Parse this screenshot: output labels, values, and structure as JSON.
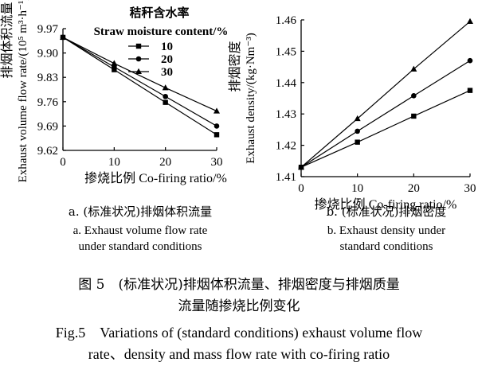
{
  "legend": {
    "title_zh": "秸秆含水率",
    "title_en": "Straw moisture content/%",
    "entries": [
      "10",
      "20",
      "30"
    ]
  },
  "panels": [
    {
      "subcaption_zh": "a. (标准状况)排烟体积流量",
      "subcaption_en_1": "a. Exhaust volume flow rate",
      "subcaption_en_2": "under standard conditions"
    },
    {
      "subcaption_zh": "b. (标准状况)排烟密度",
      "subcaption_en_1": "b. Exhaust density under",
      "subcaption_en_2": "standard conditions"
    }
  ],
  "caption": {
    "zh_line1": "图 5　(标准状况)排烟体积流量、排烟密度与排烟质量",
    "zh_line2": "流量随掺烧比例变化",
    "en_line1": "Fig.5　Variations of (standard conditions) exhaust volume flow",
    "en_line2": "rate、density and mass flow rate with co-firing ratio"
  },
  "chart_data": [
    {
      "type": "line",
      "xlabel_zh": "掺烧比例",
      "xlabel_en": "Co-firing ratio/%",
      "ylabel_zh": "排烟体积流量",
      "ylabel_en": "Exhaust volume flow rate/(10⁵ m³·h⁻¹)",
      "x": [
        0,
        10,
        20,
        30
      ],
      "x_ticks": [
        "0",
        "10",
        "20",
        "30"
      ],
      "xlim": [
        0,
        30
      ],
      "ylim": [
        9.62,
        9.97
      ],
      "y_ticks": [
        "9.97",
        "9.90",
        "9.83",
        "9.76",
        "9.69",
        "9.62"
      ],
      "grid": false,
      "series": [
        {
          "name": "10",
          "marker": "square",
          "values": [
            9.945,
            9.852,
            9.758,
            9.665
          ]
        },
        {
          "name": "20",
          "marker": "circle",
          "values": [
            9.945,
            9.86,
            9.775,
            9.69
          ]
        },
        {
          "name": "30",
          "marker": "triangle",
          "values": [
            9.945,
            9.87,
            9.8,
            9.733
          ]
        }
      ]
    },
    {
      "type": "line",
      "xlabel_zh": "掺烧比例",
      "xlabel_en": "Co-firing ratio/%",
      "ylabel_zh": "排烟密度",
      "ylabel_en": "Exhaust density/(kg·Nm⁻³)",
      "x": [
        0,
        10,
        20,
        30
      ],
      "x_ticks": [
        "0",
        "10",
        "20",
        "30"
      ],
      "xlim": [
        0,
        30
      ],
      "ylim": [
        1.41,
        1.46
      ],
      "y_ticks": [
        "1.46",
        "1.45",
        "1.44",
        "1.43",
        "1.42",
        "1.41"
      ],
      "grid": false,
      "series": [
        {
          "name": "10",
          "marker": "square",
          "values": [
            1.413,
            1.421,
            1.4293,
            1.4375
          ]
        },
        {
          "name": "20",
          "marker": "circle",
          "values": [
            1.413,
            1.4245,
            1.4358,
            1.447
          ]
        },
        {
          "name": "30",
          "marker": "triangle",
          "values": [
            1.413,
            1.4285,
            1.4443,
            1.4595
          ]
        }
      ]
    }
  ]
}
